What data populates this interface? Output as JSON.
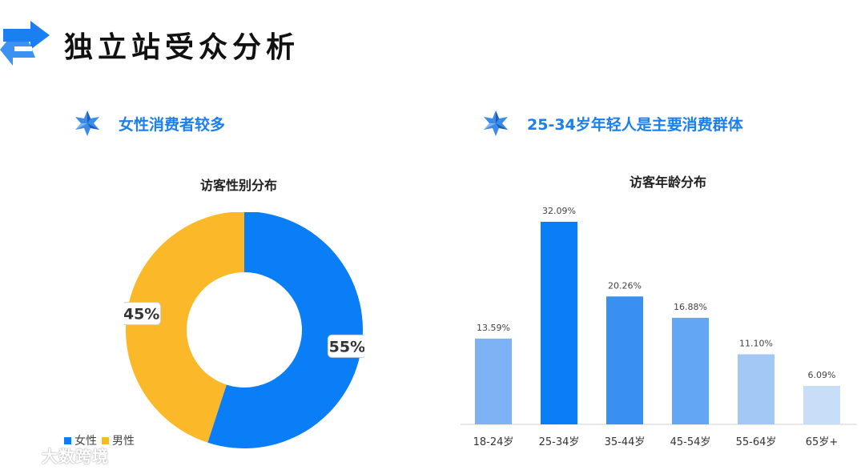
{
  "header": {
    "title": "独立站受众分析",
    "logo_icon": "swap-arrows-icon"
  },
  "left": {
    "subtitle": "女性消费者较多",
    "chart_title": "访客性别分布",
    "legend": [
      {
        "label": "女性",
        "color": "#0a7ef7"
      },
      {
        "label": "男性",
        "color": "#fbb828"
      }
    ]
  },
  "right": {
    "subtitle": "25-34岁年轻人是主要消费群体",
    "chart_title": "访客年龄分布"
  },
  "watermark": "大数跨境",
  "chart_data": [
    {
      "type": "pie",
      "title": "访客性别分布",
      "labels": [
        "女性",
        "男性"
      ],
      "values": [
        55,
        45
      ],
      "value_labels": [
        "55%",
        "45%"
      ],
      "colors": [
        "#0a7ef7",
        "#fbb828"
      ],
      "donut": true,
      "legend_position": "bottom-left"
    },
    {
      "type": "bar",
      "title": "访客年龄分布",
      "categories": [
        "18-24岁",
        "25-34岁",
        "35-44岁",
        "45-54岁",
        "55-64岁",
        "65岁+"
      ],
      "values": [
        13.59,
        32.09,
        20.26,
        16.88,
        11.1,
        6.09
      ],
      "value_labels": [
        "13.59%",
        "32.09%",
        "20.26%",
        "16.88%",
        "11.10%",
        "6.09%"
      ],
      "colors": [
        "#7db3f4",
        "#0a7ef7",
        "#3a8ff2",
        "#62a6f4",
        "#a3c8f6",
        "#c8ddf8"
      ],
      "ylim": [
        0,
        32.09
      ],
      "grid": false
    }
  ]
}
